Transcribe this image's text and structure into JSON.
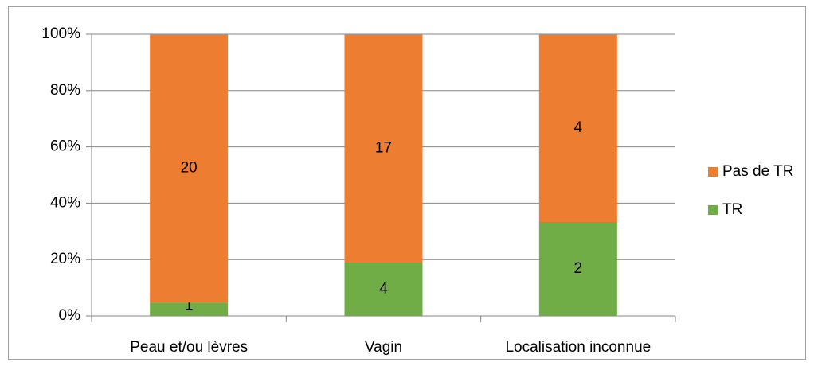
{
  "chart_data": {
    "type": "bar",
    "stacking": "percent",
    "categories": [
      "Peau et/ou lèvres",
      "Vagin",
      "Localisation inconnue"
    ],
    "series": [
      {
        "name": "TR",
        "color": "#70ad47",
        "values": [
          1,
          4,
          2
        ]
      },
      {
        "name": "Pas de TR",
        "color": "#ed7d31",
        "values": [
          20,
          17,
          4
        ]
      }
    ],
    "ylim": [
      0,
      100
    ],
    "yticks": [
      {
        "value": 0,
        "label": "0%"
      },
      {
        "value": 20,
        "label": "20%"
      },
      {
        "value": 40,
        "label": "40%"
      },
      {
        "value": 60,
        "label": "60%"
      },
      {
        "value": 80,
        "label": "80%"
      },
      {
        "value": 100,
        "label": "100%"
      }
    ],
    "grid": true,
    "legend": "right"
  }
}
